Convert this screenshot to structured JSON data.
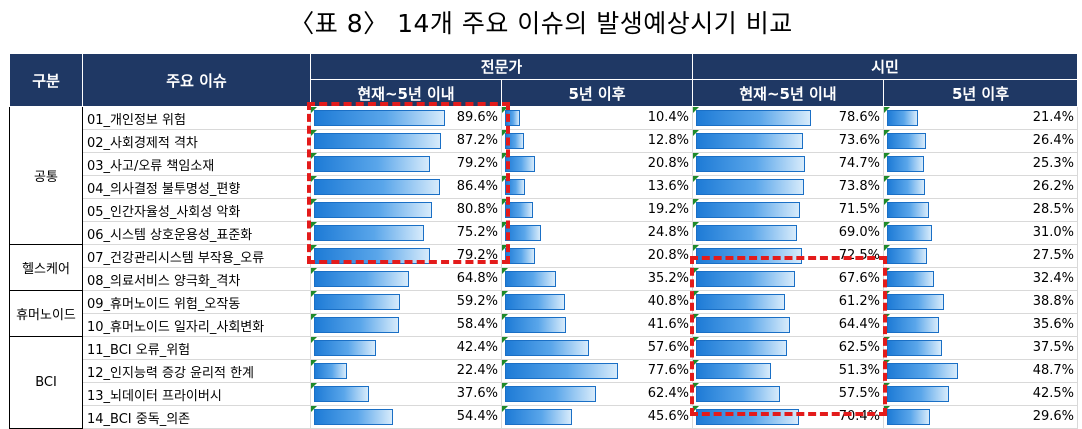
{
  "title": "〈표 8〉 14개 주요 이슈의 발생예상시기 비교",
  "header": {
    "col_group": "구분",
    "col_issue": "주요 이슈",
    "experts": "전문가",
    "citizens": "시민",
    "near": "현재~5년 이내",
    "far": "5년 이후"
  },
  "groups": [
    {
      "label": "공통",
      "rows": [
        {
          "issue": "01_개인정보 위험",
          "values": [
            "89.6%",
            "10.4%",
            "78.6%",
            "21.4%"
          ],
          "fractions": [
            0.896,
            0.104,
            0.786,
            0.214
          ]
        },
        {
          "issue": "02_사회경제적 격차",
          "values": [
            "87.2%",
            "12.8%",
            "73.6%",
            "26.4%"
          ],
          "fractions": [
            0.872,
            0.128,
            0.736,
            0.264
          ]
        },
        {
          "issue": "03_사고/오류 책임소재",
          "values": [
            "79.2%",
            "20.8%",
            "74.7%",
            "25.3%"
          ],
          "fractions": [
            0.792,
            0.208,
            0.747,
            0.253
          ]
        },
        {
          "issue": "04_의사결정 불투명성_편향",
          "values": [
            "86.4%",
            "13.6%",
            "73.8%",
            "26.2%"
          ],
          "fractions": [
            0.864,
            0.136,
            0.738,
            0.262
          ]
        },
        {
          "issue": "05_인간자율성_사회성 악화",
          "values": [
            "80.8%",
            "19.2%",
            "71.5%",
            "28.5%"
          ],
          "fractions": [
            0.808,
            0.192,
            0.715,
            0.285
          ]
        },
        {
          "issue": "06_시스템 상호운용성_표준화",
          "values": [
            "75.2%",
            "24.8%",
            "69.0%",
            "31.0%"
          ],
          "fractions": [
            0.752,
            0.248,
            0.69,
            0.31
          ]
        }
      ]
    },
    {
      "label": "헬스케어",
      "rows": [
        {
          "issue": "07_건강관리시스템 부작용_오류",
          "values": [
            "79.2%",
            "20.8%",
            "72.5%",
            "27.5%"
          ],
          "fractions": [
            0.792,
            0.208,
            0.725,
            0.275
          ]
        },
        {
          "issue": "08_의료서비스 양극화_격차",
          "values": [
            "64.8%",
            "35.2%",
            "67.6%",
            "32.4%"
          ],
          "fractions": [
            0.648,
            0.352,
            0.676,
            0.324
          ]
        }
      ]
    },
    {
      "label": "휴머노이드",
      "rows": [
        {
          "issue": "09_휴머노이드 위험_오작동",
          "values": [
            "59.2%",
            "40.8%",
            "61.2%",
            "38.8%"
          ],
          "fractions": [
            0.592,
            0.408,
            0.612,
            0.388
          ]
        },
        {
          "issue": "10_휴머노이드 일자리_사회변화",
          "values": [
            "58.4%",
            "41.6%",
            "64.4%",
            "35.6%"
          ],
          "fractions": [
            0.584,
            0.416,
            0.644,
            0.356
          ]
        }
      ]
    },
    {
      "label": "BCI",
      "rows": [
        {
          "issue": "11_BCI 오류_위험",
          "values": [
            "42.4%",
            "57.6%",
            "62.5%",
            "37.5%"
          ],
          "fractions": [
            0.424,
            0.576,
            0.625,
            0.375
          ]
        },
        {
          "issue": "12_인지능력 증강 윤리적 한계",
          "values": [
            "22.4%",
            "77.6%",
            "51.3%",
            "48.7%"
          ],
          "fractions": [
            0.224,
            0.776,
            0.513,
            0.487
          ]
        },
        {
          "issue": "13_뇌데이터 프라이버시",
          "values": [
            "37.6%",
            "62.4%",
            "57.5%",
            "42.5%"
          ],
          "fractions": [
            0.376,
            0.624,
            0.575,
            0.425
          ]
        },
        {
          "issue": "14_BCI 중독_의존",
          "values": [
            "54.4%",
            "45.6%",
            "70.4%",
            "29.6%"
          ],
          "fractions": [
            0.544,
            0.456,
            0.704,
            0.296
          ]
        }
      ]
    }
  ]
}
